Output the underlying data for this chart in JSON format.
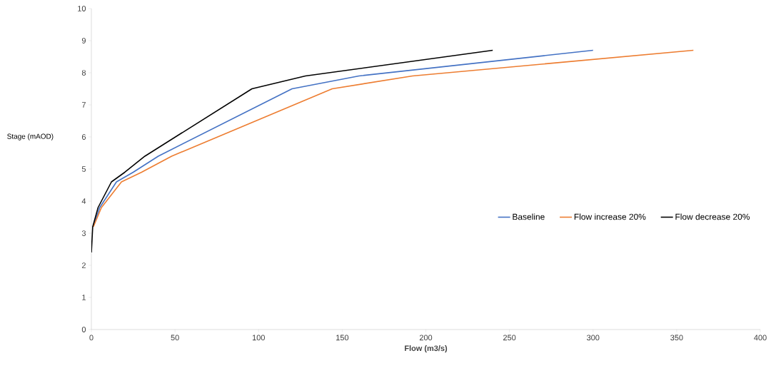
{
  "chart_data": {
    "type": "line",
    "xlabel": "Flow (m3/s)",
    "ylabel": "Stage (mAOD)",
    "xlim": [
      0,
      400
    ],
    "xticks": [
      0,
      50,
      100,
      150,
      200,
      250,
      300,
      350,
      400
    ],
    "ylim": [
      0,
      10
    ],
    "yticks": [
      0,
      1,
      2,
      3,
      4,
      5,
      6,
      7,
      8,
      9,
      10
    ],
    "grid": false,
    "legend": "right",
    "marker": "none",
    "line_style": "solid",
    "series": [
      {
        "name": "Baseline",
        "color": "#4472c4",
        "x": [
          1,
          5,
          15,
          25,
          40,
          120,
          160,
          300
        ],
        "values": [
          3.2,
          3.8,
          4.6,
          4.9,
          5.4,
          7.5,
          7.9,
          8.7
        ]
      },
      {
        "name": "Flow increase 20%",
        "color": "#ed7d31",
        "x": [
          1.2,
          6,
          18,
          30,
          48,
          144,
          192,
          360
        ],
        "values": [
          3.2,
          3.8,
          4.6,
          4.9,
          5.4,
          7.5,
          7.9,
          8.7
        ]
      },
      {
        "name": "Flow decrease 20%",
        "color": "#000000",
        "x": [
          0,
          0.8,
          4,
          12,
          20,
          32,
          96,
          128,
          240
        ],
        "values": [
          2.4,
          3.2,
          3.8,
          4.6,
          4.9,
          5.4,
          7.5,
          7.9,
          8.7
        ]
      }
    ]
  }
}
